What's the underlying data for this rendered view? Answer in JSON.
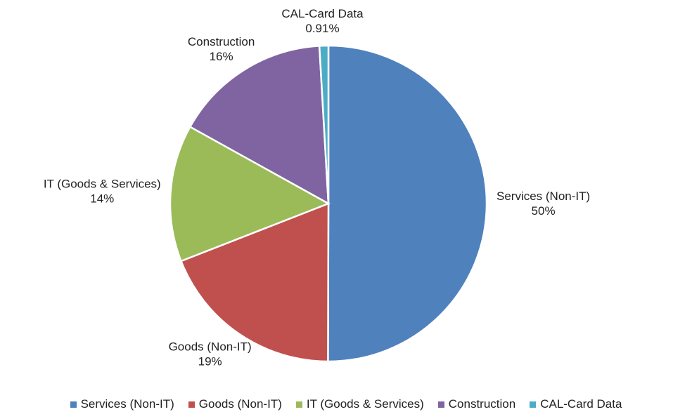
{
  "chart_data": {
    "type": "pie",
    "categories": [
      "Services (Non-IT)",
      "Goods (Non-IT)",
      "IT (Goods & Services)",
      "Construction",
      "CAL-Card Data"
    ],
    "values": [
      50,
      19,
      14,
      16,
      0.91
    ],
    "value_labels": [
      "50%",
      "19%",
      "14%",
      "16%",
      "0.91%"
    ],
    "colors": [
      "#4f81bd",
      "#c0504d",
      "#9bbb59",
      "#8064a2",
      "#4bacc6"
    ],
    "legend": "bottom"
  }
}
